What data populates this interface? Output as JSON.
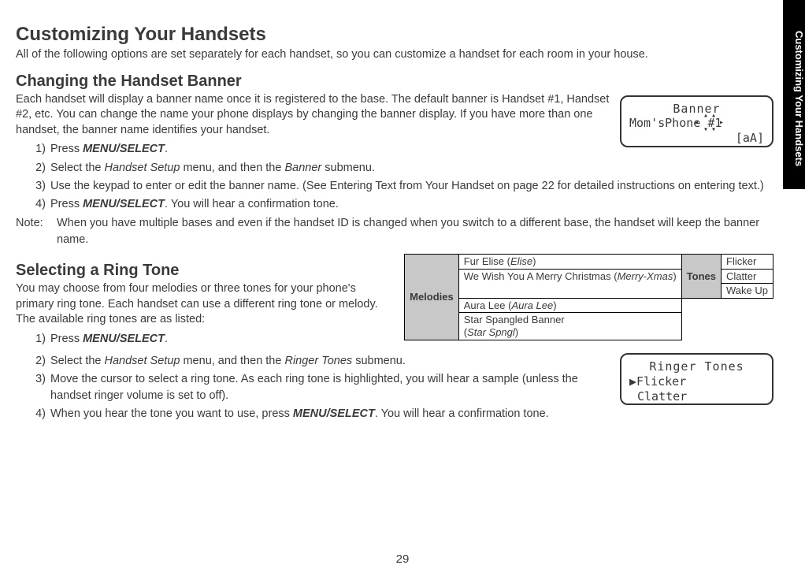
{
  "sideTab": "Customizing Your Handsets",
  "title": "Customizing Your Handsets",
  "intro": "All of the following options are set separately for each handset, so you can customize a handset for each room in your house.",
  "section1": {
    "heading": "Changing the Handset Banner",
    "body": "Each handset will display a banner name once it is registered to the base. The default banner is Handset #1, Handset #2, etc. You can change the name your phone displays by changing the banner display. If you have more than one handset, the banner name identifies your handset.",
    "lcd": {
      "line1": "Banner",
      "line2": "Mom'sPhone #1",
      "line3": "[aA]"
    },
    "steps": [
      {
        "pre": "Press ",
        "bold": "MENU/SELECT",
        "post": "."
      },
      {
        "pre": "Select the ",
        "ital": "Handset Setup",
        "mid": " menu, and then the ",
        "ital2": "Banner",
        "post": " submenu."
      },
      {
        "pre": "Use the keypad to enter or edit the banner name. (See Entering Text from Your Handset on page 22 for detailed instructions on entering text.)"
      },
      {
        "pre": "Press ",
        "bold": "MENU/SELECT",
        "post": ". You will hear a confirmation tone."
      }
    ],
    "noteLabel": "Note:",
    "noteText": "When you have multiple bases and even if the handset ID is changed when you switch to a different base, the handset will keep the banner name."
  },
  "section2": {
    "heading": "Selecting a Ring Tone",
    "body": "You may choose from four melodies or three tones for your phone's primary ring tone. Each handset can use a different ring tone or melody. The available ring tones are as listed:",
    "table": {
      "hdrMelodies": "Melodies",
      "hdrTones": "Tones",
      "melodies": [
        {
          "name": "Fur Elise",
          "disp": "Elise"
        },
        {
          "name": "We Wish You A Merry Christmas",
          "disp": "Merry-Xmas"
        },
        {
          "name": "Aura Lee",
          "disp": "Aura Lee"
        },
        {
          "name": "Star Spangled Banner",
          "disp": "Star Spngl"
        }
      ],
      "tones": [
        "Flicker",
        "Clatter",
        "Wake Up"
      ]
    },
    "step1": {
      "pre": "Press ",
      "bold": "MENU/SELECT",
      "post": "."
    },
    "steps": [
      {
        "pre": "Select the ",
        "ital": "Handset Setup",
        "mid": " menu, and then the ",
        "ital2": "Ringer Tones",
        "post": " submenu."
      },
      {
        "pre": "Move the cursor to select a ring tone. As each ring tone is highlighted, you will hear a sample (unless the handset ringer volume is set to off)."
      },
      {
        "pre": "When you hear the tone you want to use, press ",
        "bold": "MENU/SELECT",
        "post": ". You will hear a confirmation tone."
      }
    ],
    "lcd": {
      "line1": "Ringer Tones",
      "line2": "Flicker",
      "line3": "Clatter",
      "pointer": "▶"
    }
  },
  "pageNumber": "29"
}
